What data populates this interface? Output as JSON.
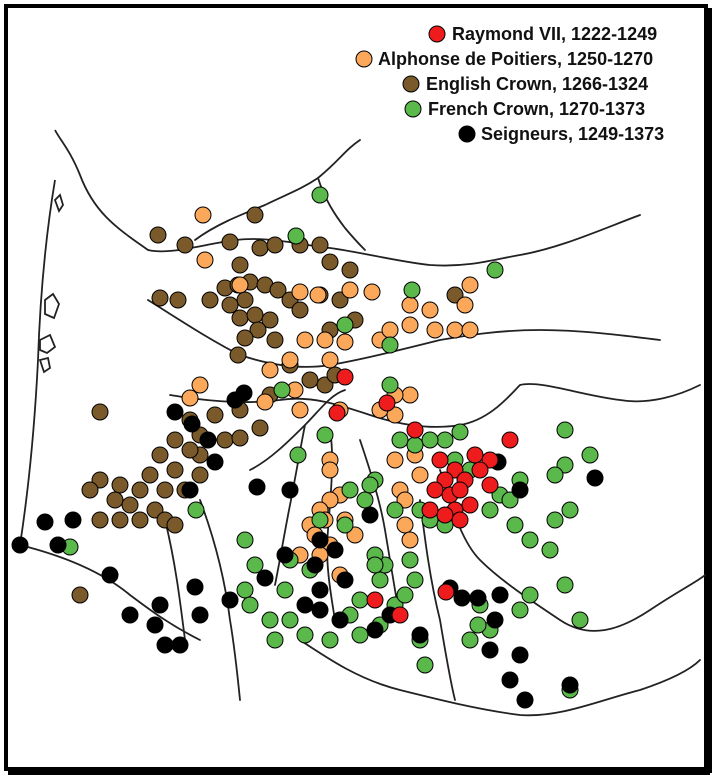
{
  "legend": [
    {
      "key": "raymond",
      "label": "Raymond VII, 1222-1249",
      "color": "#ee1c1c"
    },
    {
      "key": "alphonse",
      "label": "Alphonse de Poitiers, 1250-1270",
      "color": "#fba85a"
    },
    {
      "key": "english",
      "label": "English Crown, 1266-1324",
      "color": "#7a5a2a"
    },
    {
      "key": "french",
      "label": "French Crown, 1270-1373",
      "color": "#5bb84a"
    },
    {
      "key": "seigneurs",
      "label": "Seigneurs, 1249-1373",
      "color": "#000000"
    }
  ],
  "map": {
    "frame_color": "#000000",
    "background": "#ffffff"
  }
}
